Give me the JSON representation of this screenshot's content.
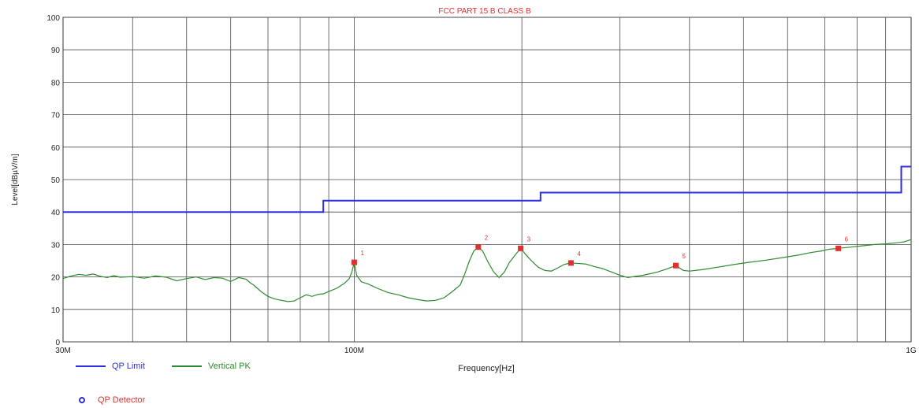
{
  "colors": {
    "limit": "#2f2fe0",
    "trace": "#2e8a2e",
    "marker": "#e03030",
    "title": "#e03030",
    "detector": "#2f2fd0",
    "grid": "#4a4a4a",
    "text": "#222222"
  },
  "chart_data": {
    "type": "line",
    "title": "FCC PART 15 B CLASS B",
    "xlabel": "Frequency[Hz]",
    "ylabel": "Level[dBµV/m]",
    "xscale": "log",
    "xlim_mhz": [
      30,
      1000
    ],
    "ylim": [
      0,
      100
    ],
    "yticks": [
      0,
      10,
      20,
      30,
      40,
      50,
      60,
      70,
      80,
      90,
      100
    ],
    "xtick_labels": [
      {
        "mhz": 30,
        "label": "30M"
      },
      {
        "mhz": 100,
        "label": "100M"
      },
      {
        "mhz": 1000,
        "label": "1G"
      }
    ],
    "grid": true,
    "series": [
      {
        "name": "QP Limit",
        "kind": "step",
        "points_mhz_level": [
          [
            30,
            40
          ],
          [
            88,
            40
          ],
          [
            88,
            43.5
          ],
          [
            216,
            43.5
          ],
          [
            216,
            46
          ],
          [
            960,
            46
          ],
          [
            960,
            54
          ],
          [
            1000,
            54
          ]
        ]
      },
      {
        "name": "Vertical PK",
        "kind": "trace",
        "points_mhz_level": [
          [
            30,
            19.5
          ],
          [
            31,
            20.3
          ],
          [
            32,
            20.8
          ],
          [
            33,
            20.5
          ],
          [
            34,
            20.9
          ],
          [
            35,
            20.2
          ],
          [
            36,
            19.8
          ],
          [
            37,
            20.4
          ],
          [
            38,
            19.9
          ],
          [
            40,
            20.1
          ],
          [
            42,
            19.6
          ],
          [
            44,
            20.3
          ],
          [
            46,
            19.9
          ],
          [
            48,
            18.8
          ],
          [
            50,
            19.5
          ],
          [
            52,
            20.0
          ],
          [
            54,
            19.2
          ],
          [
            56,
            19.8
          ],
          [
            58,
            19.6
          ],
          [
            60,
            18.6
          ],
          [
            62,
            19.8
          ],
          [
            64,
            19.3
          ],
          [
            65,
            18.2
          ],
          [
            66,
            17.5
          ],
          [
            68,
            15.5
          ],
          [
            70,
            14.0
          ],
          [
            72,
            13.2
          ],
          [
            74,
            12.8
          ],
          [
            76,
            12.4
          ],
          [
            78,
            12.6
          ],
          [
            80,
            13.6
          ],
          [
            82,
            14.5
          ],
          [
            84,
            14.0
          ],
          [
            86,
            14.6
          ],
          [
            88,
            14.8
          ],
          [
            90,
            15.5
          ],
          [
            93,
            16.5
          ],
          [
            96,
            18.0
          ],
          [
            98,
            19.5
          ],
          [
            99,
            21.5
          ],
          [
            100,
            24.5
          ],
          [
            101,
            20.5
          ],
          [
            103,
            18.5
          ],
          [
            106,
            17.8
          ],
          [
            110,
            16.5
          ],
          [
            115,
            15.2
          ],
          [
            120,
            14.5
          ],
          [
            125,
            13.6
          ],
          [
            130,
            13.0
          ],
          [
            135,
            12.6
          ],
          [
            140,
            12.8
          ],
          [
            145,
            13.6
          ],
          [
            150,
            15.5
          ],
          [
            155,
            17.5
          ],
          [
            158,
            21.0
          ],
          [
            161,
            25.0
          ],
          [
            164,
            28.0
          ],
          [
            167,
            29.2
          ],
          [
            170,
            28.0
          ],
          [
            174,
            24.5
          ],
          [
            178,
            21.5
          ],
          [
            182,
            19.8
          ],
          [
            186,
            21.5
          ],
          [
            190,
            24.5
          ],
          [
            195,
            27.0
          ],
          [
            199,
            28.8
          ],
          [
            203,
            27.0
          ],
          [
            208,
            25.0
          ],
          [
            214,
            23.0
          ],
          [
            220,
            22.0
          ],
          [
            226,
            21.8
          ],
          [
            232,
            22.8
          ],
          [
            238,
            23.8
          ],
          [
            244,
            24.3
          ],
          [
            250,
            24.2
          ],
          [
            260,
            24.0
          ],
          [
            270,
            23.2
          ],
          [
            280,
            22.5
          ],
          [
            290,
            21.5
          ],
          [
            300,
            20.5
          ],
          [
            310,
            19.8
          ],
          [
            320,
            20.2
          ],
          [
            330,
            20.5
          ],
          [
            340,
            21.0
          ],
          [
            350,
            21.5
          ],
          [
            365,
            22.5
          ],
          [
            378,
            23.5
          ],
          [
            390,
            22.0
          ],
          [
            400,
            21.8
          ],
          [
            420,
            22.2
          ],
          [
            450,
            23.0
          ],
          [
            480,
            23.8
          ],
          [
            510,
            24.5
          ],
          [
            550,
            25.2
          ],
          [
            590,
            26.0
          ],
          [
            630,
            26.8
          ],
          [
            660,
            27.5
          ],
          [
            690,
            28.0
          ],
          [
            710,
            28.5
          ],
          [
            740,
            28.8
          ],
          [
            780,
            29.2
          ],
          [
            820,
            29.6
          ],
          [
            860,
            30.0
          ],
          [
            900,
            30.2
          ],
          [
            940,
            30.5
          ],
          [
            970,
            30.8
          ],
          [
            1000,
            31.5
          ]
        ]
      }
    ],
    "markers": [
      {
        "label": "1",
        "mhz": 100.0,
        "level": 24.5
      },
      {
        "label": "2",
        "mhz": 167.0,
        "level": 29.2
      },
      {
        "label": "3",
        "mhz": 199.0,
        "level": 28.8
      },
      {
        "label": "4",
        "mhz": 245.0,
        "level": 24.3
      },
      {
        "label": "5",
        "mhz": 378.0,
        "level": 23.5
      },
      {
        "label": "6",
        "mhz": 740.0,
        "level": 28.8
      }
    ]
  },
  "legend": {
    "limit_label": "QP Limit",
    "trace_label": "Vertical PK",
    "detector_label": "QP Detector"
  }
}
